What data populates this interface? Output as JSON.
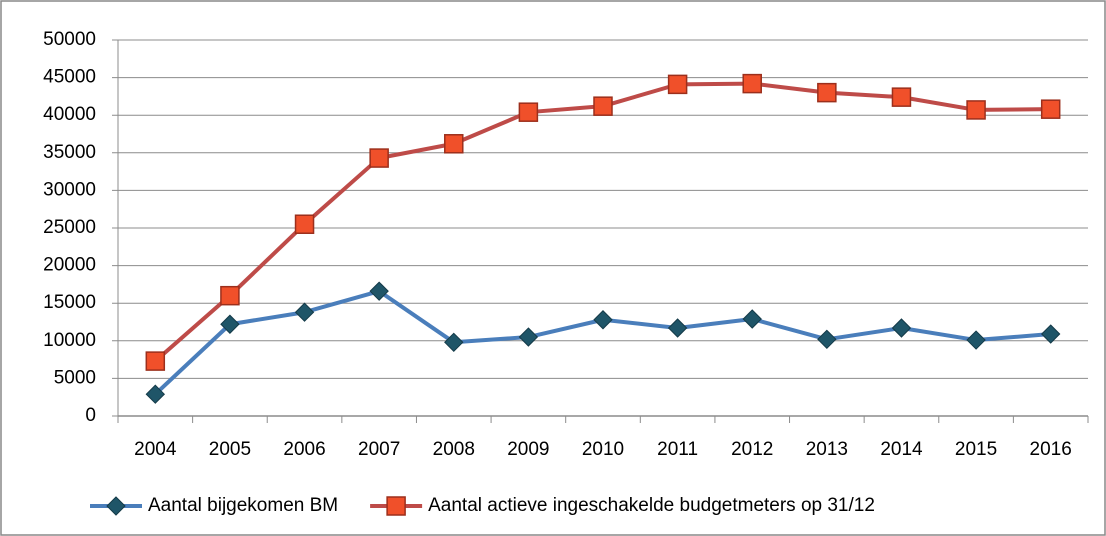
{
  "chart_data": {
    "type": "line",
    "categories": [
      "2004",
      "2005",
      "2006",
      "2007",
      "2008",
      "2009",
      "2010",
      "2011",
      "2012",
      "2013",
      "2014",
      "2015",
      "2016"
    ],
    "series": [
      {
        "name": "Aantal bijgekomen BM",
        "color": "#4a7ebb",
        "marker": "diamond",
        "marker_color": "#1f5568",
        "values": [
          2900,
          12200,
          13800,
          16600,
          9800,
          10500,
          12800,
          11700,
          12900,
          10200,
          11700,
          10100,
          10900
        ]
      },
      {
        "name": "Aantal actieve ingeschakelde budgetmeters op 31/12",
        "color": "#be4b48",
        "marker": "square",
        "marker_color": "#f0502a",
        "values": [
          7300,
          16000,
          25500,
          34300,
          36200,
          40400,
          41200,
          44100,
          44200,
          43000,
          42400,
          40700,
          40800
        ]
      }
    ],
    "ylim": [
      0,
      50000
    ],
    "yticks": [
      0,
      5000,
      10000,
      15000,
      20000,
      25000,
      30000,
      35000,
      40000,
      45000,
      50000
    ],
    "grid": true,
    "legend": "bottom"
  }
}
